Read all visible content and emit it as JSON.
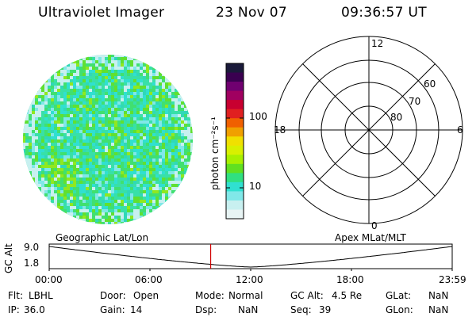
{
  "header": {
    "title": "Ultraviolet Imager",
    "date": "23 Nov 07",
    "time": "09:36:57 UT"
  },
  "colorbar": {
    "unit_label": "photon cm⁻²s⁻¹",
    "tick_labels": [
      "100",
      "10"
    ],
    "colors": [
      "#1a1a3a",
      "#3a0050",
      "#700070",
      "#a00060",
      "#c80030",
      "#e02020",
      "#f06000",
      "#f0a000",
      "#f0e000",
      "#d8f000",
      "#a8f000",
      "#60e020",
      "#30e080",
      "#30e0d0",
      "#80e8e8",
      "#c8f0f0",
      "#e8f4f4"
    ]
  },
  "polar_plot": {
    "mlt_labels": {
      "top": "12",
      "bottom": "0",
      "left": "18",
      "right": "6"
    },
    "lat_labels": [
      "60",
      "70",
      "80"
    ]
  },
  "timeline": {
    "left_label": "Geographic Lat/Lon",
    "right_label": "Apex MLat/MLT",
    "y_axis_label": "GC Alt",
    "y_ticks": [
      "9.0",
      "1.8"
    ],
    "x_ticks": [
      "00:00",
      "06:00",
      "12:00",
      "18:00",
      "23:59"
    ],
    "marker_time_fraction": 0.4007
  },
  "info": {
    "row1": [
      {
        "label": "Flt:",
        "value": "LBHL"
      },
      {
        "label": "Door:",
        "value": "Open"
      },
      {
        "label": "Mode:",
        "value": "Normal"
      },
      {
        "label": "GC Alt:",
        "value": "4.5 Re"
      },
      {
        "label": "GLat:",
        "value": "NaN"
      }
    ],
    "row2": [
      {
        "label": "IP:",
        "value": "36.0"
      },
      {
        "label": "Gain:",
        "value": "14"
      },
      {
        "label": "Dsp:",
        "value": "NaN"
      },
      {
        "label": "Seq:",
        "value": "39"
      },
      {
        "label": "GLon:",
        "value": "NaN"
      }
    ]
  }
}
